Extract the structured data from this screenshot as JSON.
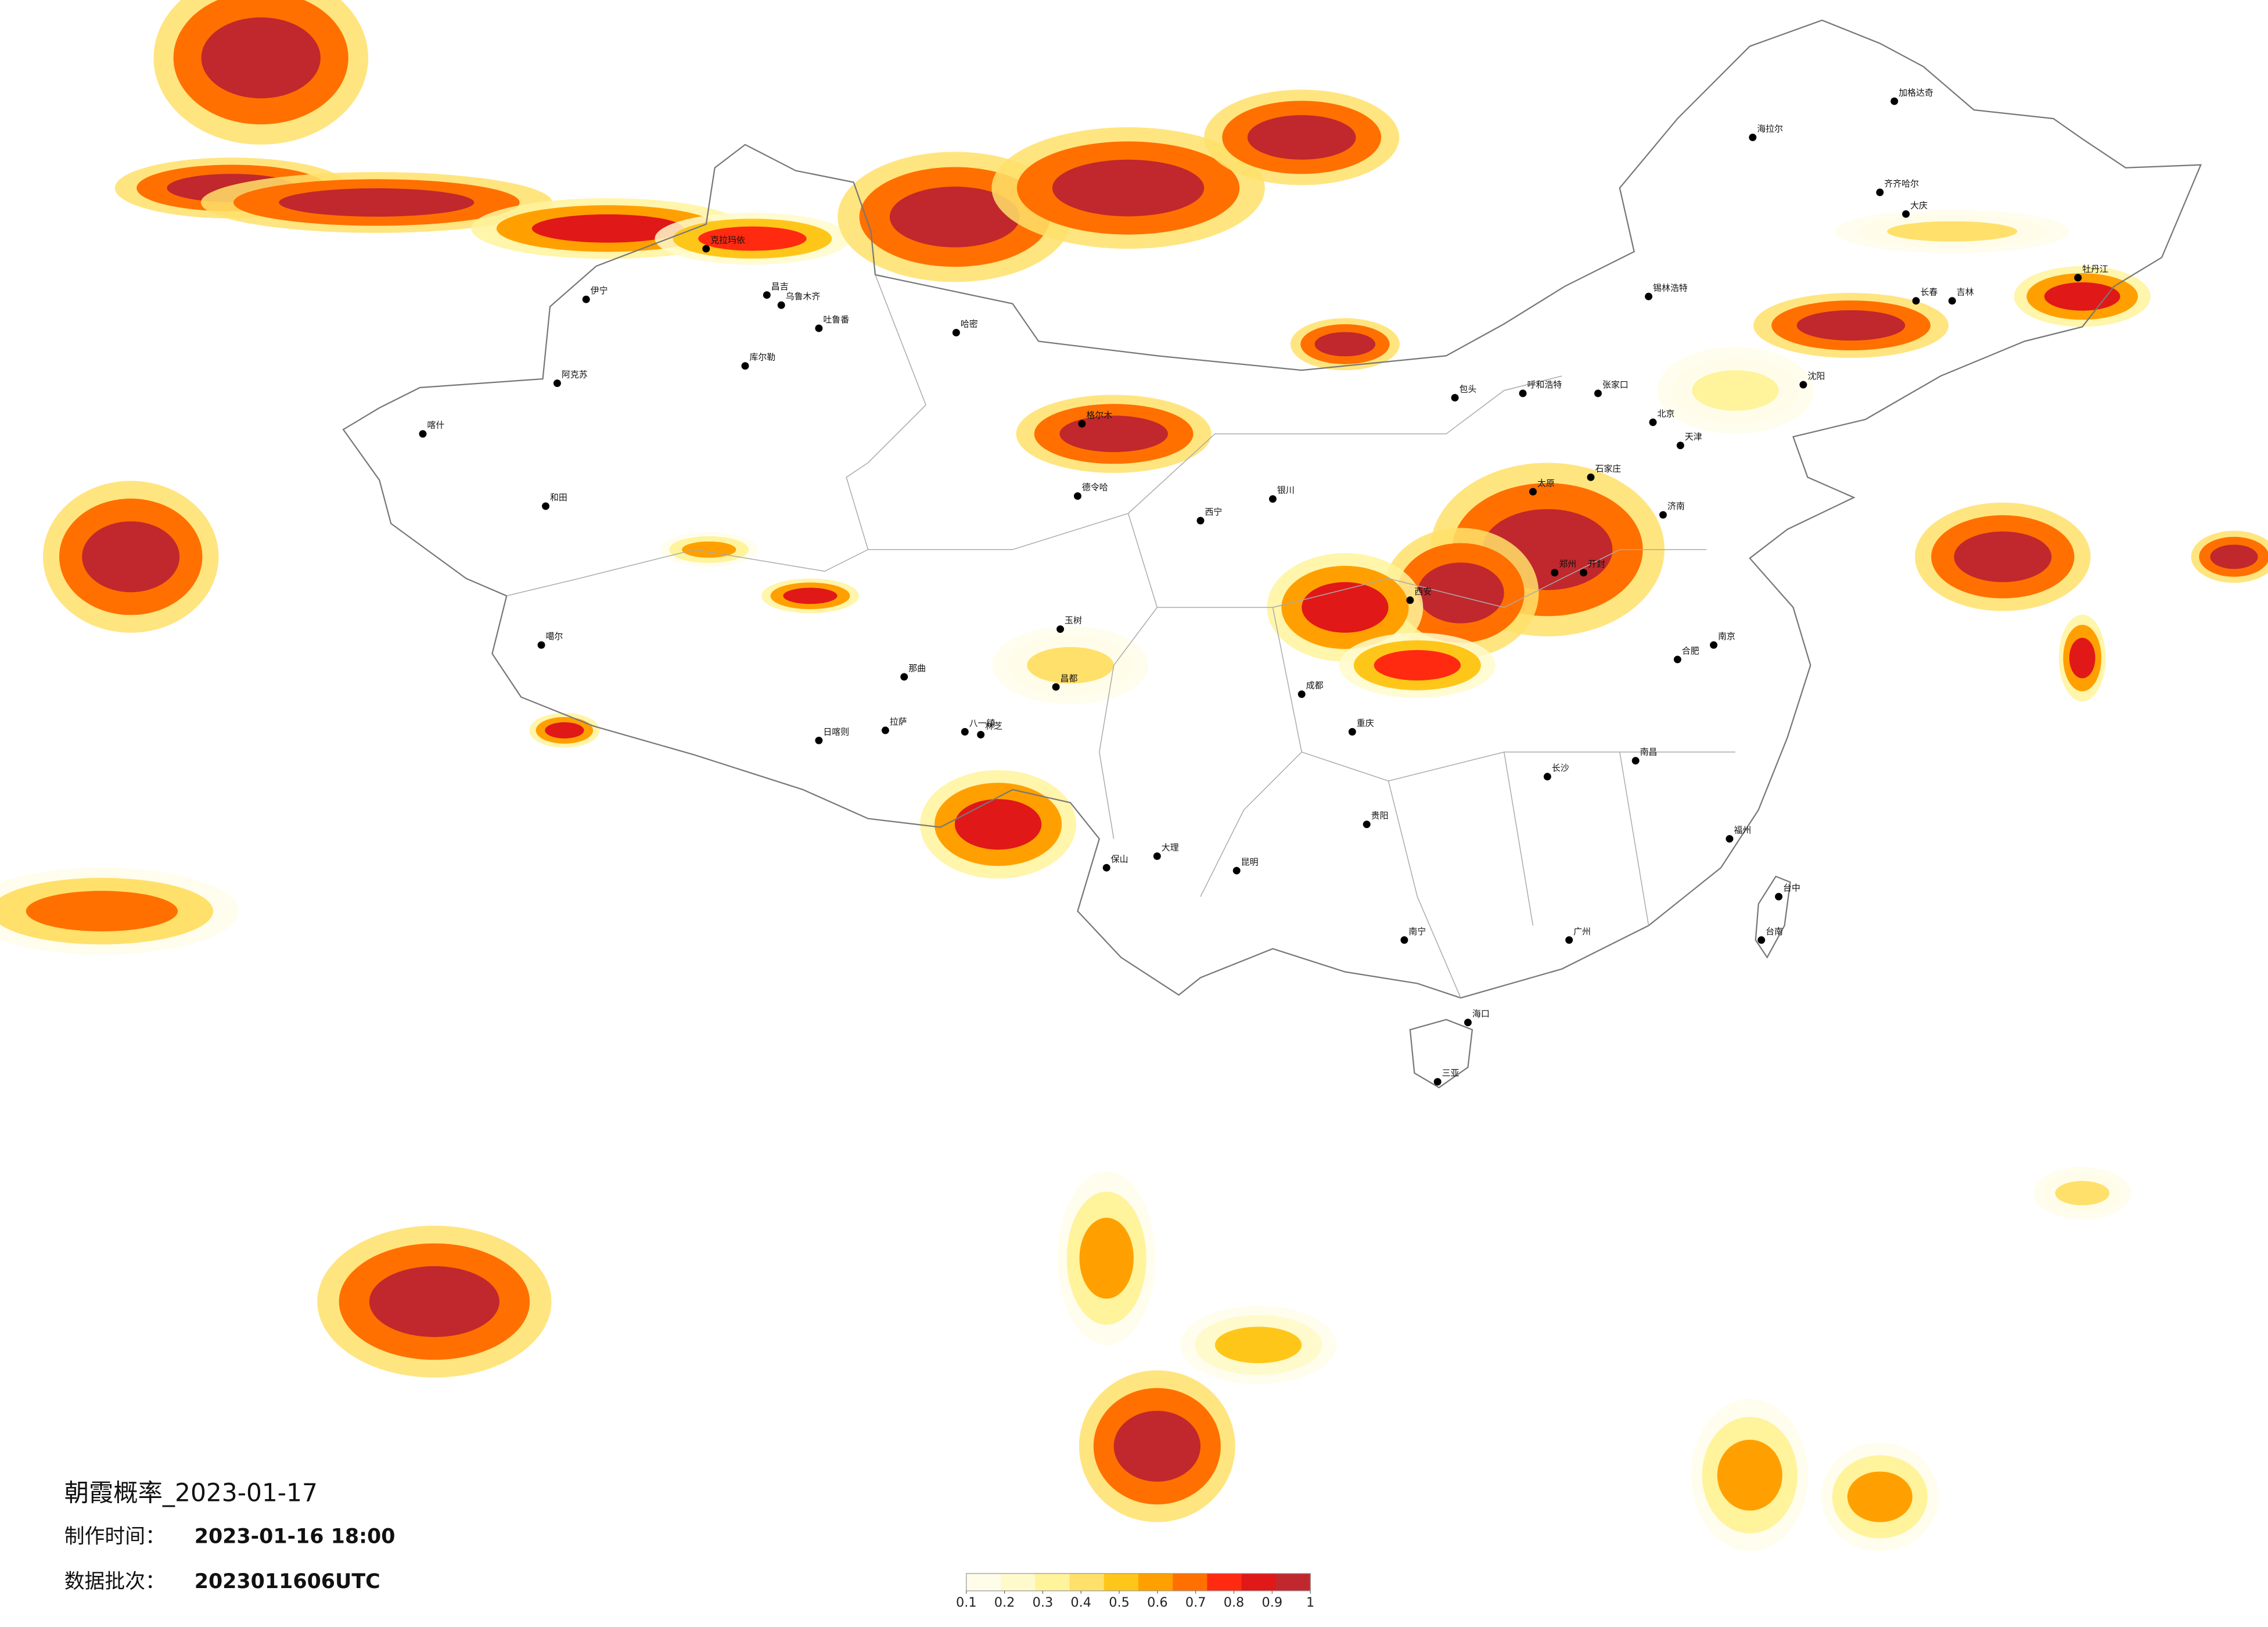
{
  "title": "朝霞概率_2023-01-17",
  "made_time": {
    "label": "制作时间：",
    "value": "2023-01-16 18:00"
  },
  "batch": {
    "label": "数据批次：",
    "value": "2023011606UTC"
  },
  "legend": {
    "ticks": [
      0.1,
      0.2,
      0.3,
      0.4,
      0.5,
      0.6,
      0.7,
      0.8,
      0.9,
      1
    ],
    "colors": [
      "#fffdea",
      "#fffacb",
      "#fff39c",
      "#ffe06a",
      "#ffc61a",
      "#ffa000",
      "#ff7000",
      "#ff2a10",
      "#e01818",
      "#c0282d"
    ]
  },
  "cities": [
    "克拉玛依",
    "伊宁",
    "昌吉",
    "乌鲁木齐",
    "吐鲁番",
    "哈密",
    "库尔勒",
    "阿克苏",
    "喀什",
    "和田",
    "格尔木",
    "德令哈",
    "西宁",
    "噶尔",
    "那曲",
    "拉萨",
    "日喀则",
    "八一镇",
    "林芝",
    "玉树",
    "昌都",
    "海拉尔",
    "加格达奇",
    "齐齐哈尔",
    "大庆",
    "牡丹江",
    "长春",
    "吉林",
    "沈阳",
    "锡林浩特",
    "呼和浩特",
    "包头",
    "张家口",
    "北京",
    "天津",
    "石家庄",
    "太原",
    "济南",
    "郑州",
    "开封",
    "西安",
    "银川",
    "成都",
    "重庆",
    "贵阳",
    "昆明",
    "南宁",
    "海口",
    "三亚",
    "长沙",
    "南昌",
    "福州",
    "南京",
    "合肥",
    "台中",
    "台南",
    "广州",
    "大理",
    "保山"
  ]
}
